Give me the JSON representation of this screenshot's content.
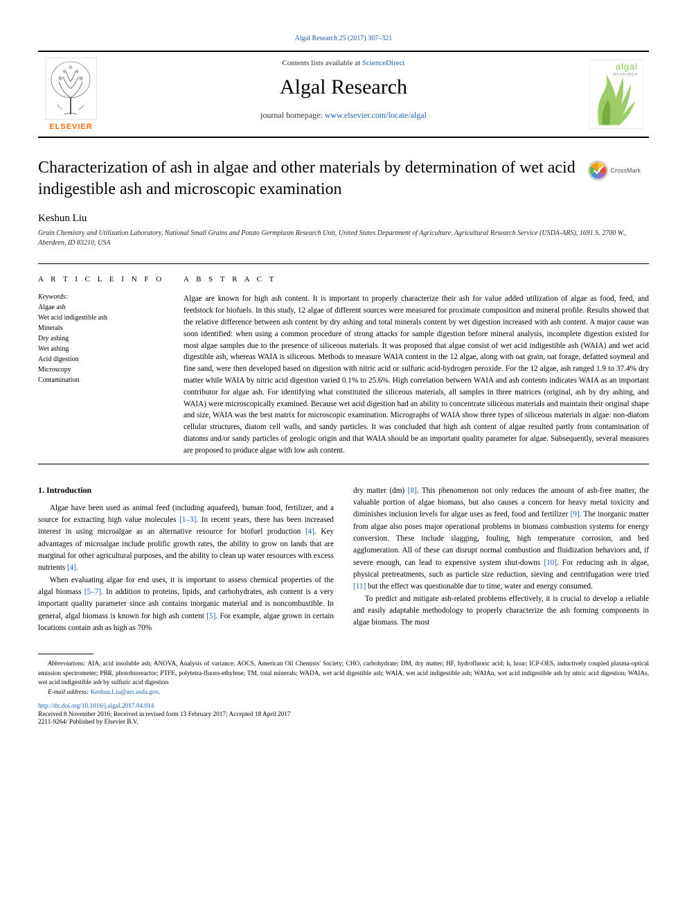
{
  "top_citation": "Algal Research 25 (2017) 307–321",
  "header": {
    "contents_prefix": "Contents lists available at ",
    "contents_link": "ScienceDirect",
    "journal_name": "Algal Research",
    "homepage_prefix": "journal homepage: ",
    "homepage_link": "www.elsevier.com/locate/algal",
    "publisher_word": "ELSEVIER",
    "cover_brand": "algal",
    "cover_sub": "RESEARCH"
  },
  "article": {
    "title": "Characterization of ash in algae and other materials by determination of wet acid indigestible ash and microscopic examination",
    "author": "Keshun Liu",
    "affiliation": "Grain Chemistry and Utilization Laboratory, National Small Grains and Potato Germplasm Research Unit, United States Department of Agriculture, Agricultural Research Service (USDA-ARS), 1691 S. 2700 W., Aberdeen, ID 83210, USA",
    "crossmark_label": "CrossMark"
  },
  "info": {
    "heading": "A R T I C L E   I N F O",
    "keywords_label": "Keywords:",
    "keywords": [
      "Algae ash",
      "Wet acid indigestible ash",
      "Minerals",
      "Dry ashing",
      "Wet ashing",
      "Acid digestion",
      "Microscopy",
      "Contamination"
    ]
  },
  "abstract": {
    "heading": "A B S T R A C T",
    "text": "Algae are known for high ash content. It is important to properly characterize their ash for value added utilization of algae as food, feed, and feedstock for biofuels. In this study, 12 algae of different sources were measured for proximate composition and mineral profile. Results showed that the relative difference between ash content by dry ashing and total minerals content by wet digestion increased with ash content. A major cause was soon identified: when using a common procedure of strong attacks for sample digestion before mineral analysis, incomplete digestion existed for most algae samples due to the presence of siliceous materials. It was proposed that algae consist of wet acid indigestible ash (WAIA) and wet acid digestible ash, whereas WAIA is siliceous. Methods to measure WAIA content in the 12 algae, along with oat grain, oat forage, defatted soymeal and fine sand, were then developed based on digestion with nitric acid or sulfuric acid-hydrogen peroxide. For the 12 algae, ash ranged 1.9 to 37.4% dry matter while WAIA by nitric acid digestion varied 0.1% to 25.6%. High correlation between WAIA and ash contents indicates WAIA as an important contributor for algae ash. For identifying what constituted the siliceous materials, all samples in three matrices (original, ash by dry ashing, and WAIA) were microscopically examined. Because wet acid digestion had an ability to concentrate siliceous materials and maintain their original shape and size, WAIA was the best matrix for microscopic examination. Micrographs of WAIA show three types of siliceous materials in algae: non-diatom cellular structures, diatom cell walls, and sandy particles. It was concluded that high ash content of algae resulted partly from contamination of diatoms and/or sandy particles of geologic origin and that WAIA should be an important quality parameter for algae. Subsequently, several measures are proposed to produce algae with low ash content."
  },
  "section1": {
    "heading": "1. Introduction",
    "p1a": "Algae have been used as animal feed (including aquafeed), human food, fertilizer, and a source for extracting high value molecules ",
    "p1_ref1": "[1–3]",
    "p1b": ". In recent years, there has been increased interest in using microalgae as an alternative resource for biofuel production ",
    "p1_ref2": "[4]",
    "p1c": ". Key advantages of microalgae include prolific growth rates, the ability to grow on lands that are marginal for other agricultural purposes, and the ability to clean up water resources with excess nutrients ",
    "p1_ref3": "[4]",
    "p1d": ".",
    "p2a": "When evaluating algae for end uses, it is important to assess chemical properties of the algal biomass ",
    "p2_ref1": "[5–7]",
    "p2b": ". In addition to proteins, lipids, and carbohydrates, ash content is a very important quality parameter since ash contains inorganic material and is noncombustible. In general, algal biomass is known for high ash content ",
    "p2_ref2": "[5]",
    "p2c": ". For example, algae grown in certain locations contain ash as high as 70%",
    "p3a": "dry matter (dm) ",
    "p3_ref1": "[8]",
    "p3b": ". This phenomenon not only reduces the amount of ash-free matter, the valuable portion of algae biomass, but also causes a concern for heavy metal toxicity and diminishes inclusion levels for algae uses as feed, food and fertilizer ",
    "p3_ref2": "[9]",
    "p3c": ". The inorganic matter from algae also poses major operational problems in biomass combustion systems for energy conversion. These include slagging, fouling, high temperature corrosion, and bed agglomeration. All of these can disrupt normal combustion and fluidization behaviors and, if severe enough, can lead to expensive system shut-downs ",
    "p3_ref3": "[10]",
    "p3d": ". For reducing ash in algae, physical pretreatments, such as particle size reduction, sieving and centrifugation were tried ",
    "p3_ref4": "[11]",
    "p3e": " but the effect was questionable due to time, water and energy consumed.",
    "p4": "To predict and mitigate ash-related problems effectively, it is crucial to develop a reliable and easily adaptable methodology to properly characterize the ash forming components in algae biomass. The most"
  },
  "footer": {
    "abbrev_label": "Abbreviations:",
    "abbrev_text": " AIA, acid insoluble ash; ANOVA, Analysis of variance; AOCS, American Oil Chemists' Society; CHO, carbohydrate; DM, dry matter; HF, hydrofluoric acid; h, hour; ICP-OES, inductively coupled plasma-optical emission spectrometer; PBR, photobioreactor; PTFE, polytetra-fluoro-ethylene; TM, total minerals; WADA, wet acid digestible ash; WAIA, wet acid indigestible ash; WAIAn, wet acid indigestible ash by nitric acid digestion; WAIAs, wet acid indigestible ash by sulfuric acid digestion",
    "email_label": "E-mail address:",
    "email": "Keshun.Liu@ars.usda.gov",
    "doi": "http://dx.doi.org/10.1016/j.algal.2017.04.014",
    "received": "Received 8 November 2016; Received in revised form 13 February 2017; Accepted 18 April 2017",
    "copyright": "2211-9264/ Published by Elsevier B.V."
  },
  "colors": {
    "link": "#1a5fb4",
    "elsevier_orange": "#ff6b00",
    "algal_green": "#8bc34a",
    "crossmark_yellow": "#f9c23c",
    "crossmark_red": "#e94f37",
    "crossmark_blue": "#4a90d9",
    "crossmark_green": "#6ab04c"
  }
}
